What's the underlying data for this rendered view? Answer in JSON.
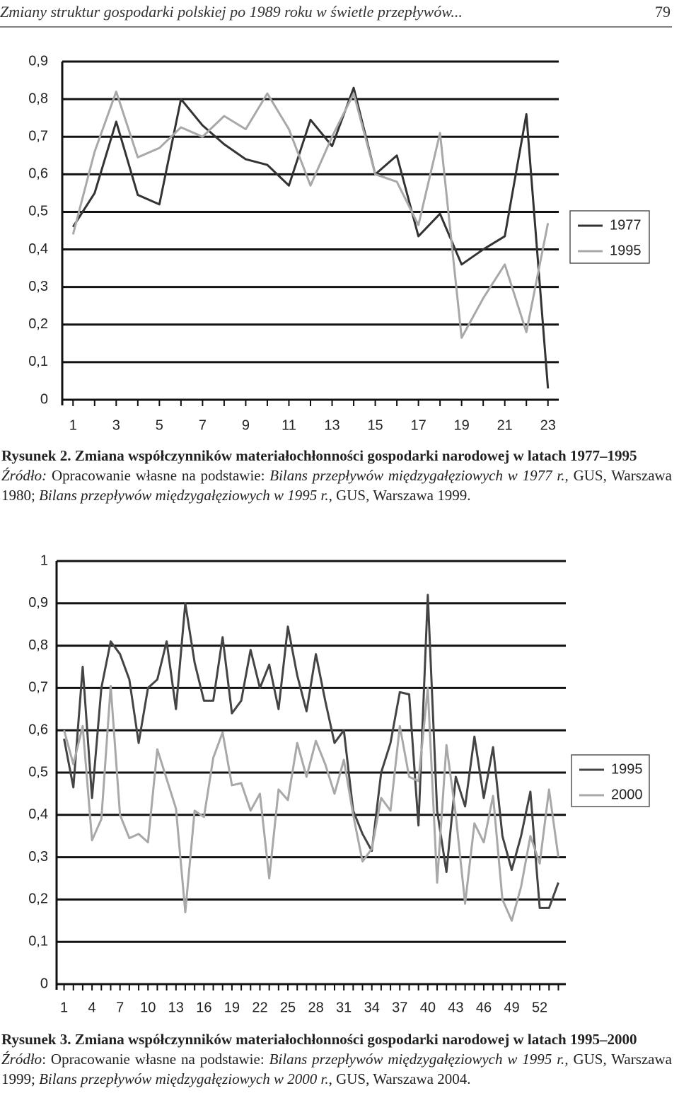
{
  "header": {
    "title": "Zmiany struktur gospodarki polskiej po 1989 roku w świetle przepływów...",
    "page": "79"
  },
  "chart_data": [
    {
      "type": "line",
      "x": [
        1,
        2,
        3,
        4,
        5,
        6,
        7,
        8,
        9,
        10,
        11,
        12,
        13,
        14,
        15,
        16,
        17,
        18,
        19,
        20,
        21,
        22,
        23
      ],
      "xlim": [
        0.5,
        23.5
      ],
      "xticks": [
        1,
        3,
        5,
        7,
        9,
        11,
        13,
        15,
        17,
        19,
        21,
        23
      ],
      "ylim": [
        0,
        0.9
      ],
      "yticks": [
        0,
        {
          "value": 0.1,
          "label": "0,1"
        },
        {
          "value": 0.2,
          "label": "0,2"
        },
        {
          "value": 0.3,
          "label": "0,3"
        },
        {
          "value": 0.4,
          "label": "0,4"
        },
        {
          "value": 0.5,
          "label": "0,5"
        },
        {
          "value": 0.6,
          "label": "0,6"
        },
        {
          "value": 0.7,
          "label": "0,7"
        },
        {
          "value": 0.8,
          "label": "0,8"
        },
        {
          "value": 0.9,
          "label": "0,9"
        }
      ],
      "grid": true,
      "legend": "right",
      "series": [
        {
          "name": "1977",
          "color": "#333333",
          "values": [
            0.46,
            0.55,
            0.74,
            0.545,
            0.52,
            0.8,
            0.73,
            0.68,
            0.64,
            0.625,
            0.57,
            0.745,
            0.675,
            0.83,
            0.6,
            0.65,
            0.435,
            0.495,
            0.36,
            0.4,
            0.435,
            0.76,
            0.03
          ]
        },
        {
          "name": "1995",
          "color": "#a8a8a8",
          "values": [
            0.44,
            0.66,
            0.82,
            0.645,
            0.67,
            0.725,
            0.7,
            0.755,
            0.72,
            0.815,
            0.72,
            0.57,
            0.7,
            0.815,
            0.6,
            0.58,
            0.465,
            0.71,
            0.165,
            0.27,
            0.36,
            0.18,
            0.47
          ]
        }
      ],
      "caption": "Rysunek 2. Zmiana współczynników materiałochłonności gospodarki narodowej w latach 1977–1995",
      "source": [
        {
          "text": "Źródło:",
          "italic": true
        },
        {
          "text": " Opracowanie własne na podstawie: ",
          "italic": false
        },
        {
          "text": "Bilans przepływów międzygałęziowych w 1977 r.",
          "italic": true
        },
        {
          "text": ", GUS, Warszawa 1980; ",
          "italic": false
        },
        {
          "text": "Bilans przepływów międzygałęziowych w 1995 r.",
          "italic": true
        },
        {
          "text": ", GUS, Warszawa 1999.",
          "italic": false
        }
      ]
    },
    {
      "type": "line",
      "x": [
        1,
        2,
        3,
        4,
        5,
        6,
        7,
        8,
        9,
        10,
        11,
        12,
        13,
        14,
        15,
        16,
        17,
        18,
        19,
        20,
        21,
        22,
        23,
        24,
        25,
        26,
        27,
        28,
        29,
        30,
        31,
        32,
        33,
        34,
        35,
        36,
        37,
        38,
        39,
        40,
        41,
        42,
        43,
        44,
        45,
        46,
        47,
        48,
        49,
        50,
        51,
        52,
        53,
        54
      ],
      "xlim": [
        0.2,
        54.8
      ],
      "xticks": [
        1,
        4,
        7,
        10,
        13,
        16,
        19,
        22,
        25,
        28,
        31,
        34,
        37,
        40,
        43,
        46,
        49,
        52
      ],
      "ylim": [
        0,
        1
      ],
      "yticks": [
        0,
        {
          "value": 0.1,
          "label": "0,1"
        },
        {
          "value": 0.2,
          "label": "0,2"
        },
        {
          "value": 0.3,
          "label": "0,3"
        },
        {
          "value": 0.4,
          "label": "0,4"
        },
        {
          "value": 0.5,
          "label": "0,5"
        },
        {
          "value": 0.6,
          "label": "0,6"
        },
        {
          "value": 0.7,
          "label": "0,7"
        },
        {
          "value": 0.8,
          "label": "0,8"
        },
        {
          "value": 0.9,
          "label": "0,9"
        },
        1
      ],
      "grid": true,
      "legend": "right",
      "series": [
        {
          "name": "1995",
          "color": "#444444",
          "values": [
            0.58,
            0.465,
            0.75,
            0.44,
            0.7,
            0.81,
            0.78,
            0.72,
            0.57,
            0.7,
            0.72,
            0.81,
            0.65,
            0.9,
            0.76,
            0.67,
            0.67,
            0.82,
            0.64,
            0.67,
            0.79,
            0.7,
            0.755,
            0.65,
            0.845,
            0.73,
            0.645,
            0.78,
            0.67,
            0.57,
            0.6,
            0.41,
            0.355,
            0.315,
            0.5,
            0.57,
            0.69,
            0.685,
            0.375,
            0.92,
            0.41,
            0.265,
            0.49,
            0.42,
            0.585,
            0.44,
            0.56,
            0.35,
            0.27,
            0.35,
            0.455,
            0.18,
            0.18,
            0.24
          ]
        },
        {
          "name": "2000",
          "color": "#a8a8a8",
          "values": [
            0.6,
            0.52,
            0.61,
            0.34,
            0.39,
            0.705,
            0.4,
            0.345,
            0.355,
            0.335,
            0.555,
            0.485,
            0.415,
            0.17,
            0.41,
            0.395,
            0.535,
            0.595,
            0.47,
            0.475,
            0.41,
            0.45,
            0.25,
            0.46,
            0.435,
            0.57,
            0.49,
            0.575,
            0.52,
            0.45,
            0.53,
            0.4,
            0.29,
            0.32,
            0.44,
            0.41,
            0.61,
            0.49,
            0.48,
            0.7,
            0.24,
            0.565,
            0.4,
            0.19,
            0.38,
            0.335,
            0.445,
            0.2,
            0.15,
            0.23,
            0.35,
            0.285,
            0.46,
            0.3
          ]
        }
      ],
      "caption": "Rysunek 3. Zmiana współczynników materiałochłonności gospodarki narodowej w latach 1995–2000",
      "source": [
        {
          "text": "Źródło",
          "italic": true
        },
        {
          "text": ": Opracowanie własne na podstawie: ",
          "italic": false
        },
        {
          "text": "Bilans przepływów międzygałęziowych w 1995 r.",
          "italic": true
        },
        {
          "text": ", GUS, Warszawa 1999; ",
          "italic": false
        },
        {
          "text": "Bilans przepływów międzygałęziowych w 2000 r.",
          "italic": true
        },
        {
          "text": ", GUS, Warszawa 2004.",
          "italic": false
        }
      ]
    }
  ]
}
